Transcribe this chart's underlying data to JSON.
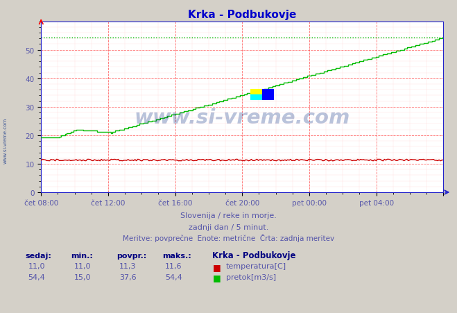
{
  "title": "Krka - Podbukovje",
  "subtitle1": "Slovenija / reke in morje.",
  "subtitle2": "zadnji dan / 5 minut.",
  "subtitle3": "Meritve: povprečne  Enote: metrične  Črta: zadnja meritev",
  "xlabel_ticks": [
    0,
    4,
    8,
    12,
    16,
    20,
    24
  ],
  "xlabel_labels": [
    "čet 08:00",
    "čet 12:00",
    "čet 16:00",
    "čet 20:00",
    "pet 00:00",
    "pet 04:00",
    ""
  ],
  "yticks": [
    0,
    10,
    20,
    30,
    40,
    50
  ],
  "temp_min": 11.0,
  "temp_max": 11.6,
  "temp_avg": 11.3,
  "temp_current": 11.0,
  "flow_min": 15.0,
  "flow_max": 54.4,
  "flow_avg": 37.6,
  "flow_current": 54.4,
  "bg_color": "#d4d0c8",
  "plot_bg_color": "#ffffff",
  "grid_color_major": "#ff4444",
  "grid_color_minor": "#ffcccc",
  "temp_color": "#cc0000",
  "flow_color": "#00bb00",
  "title_color": "#0000cc",
  "text_color": "#5555aa",
  "label_color": "#000080",
  "watermark_color": "#1a3a8a",
  "axis_color": "#2222cc",
  "num_points": 288
}
